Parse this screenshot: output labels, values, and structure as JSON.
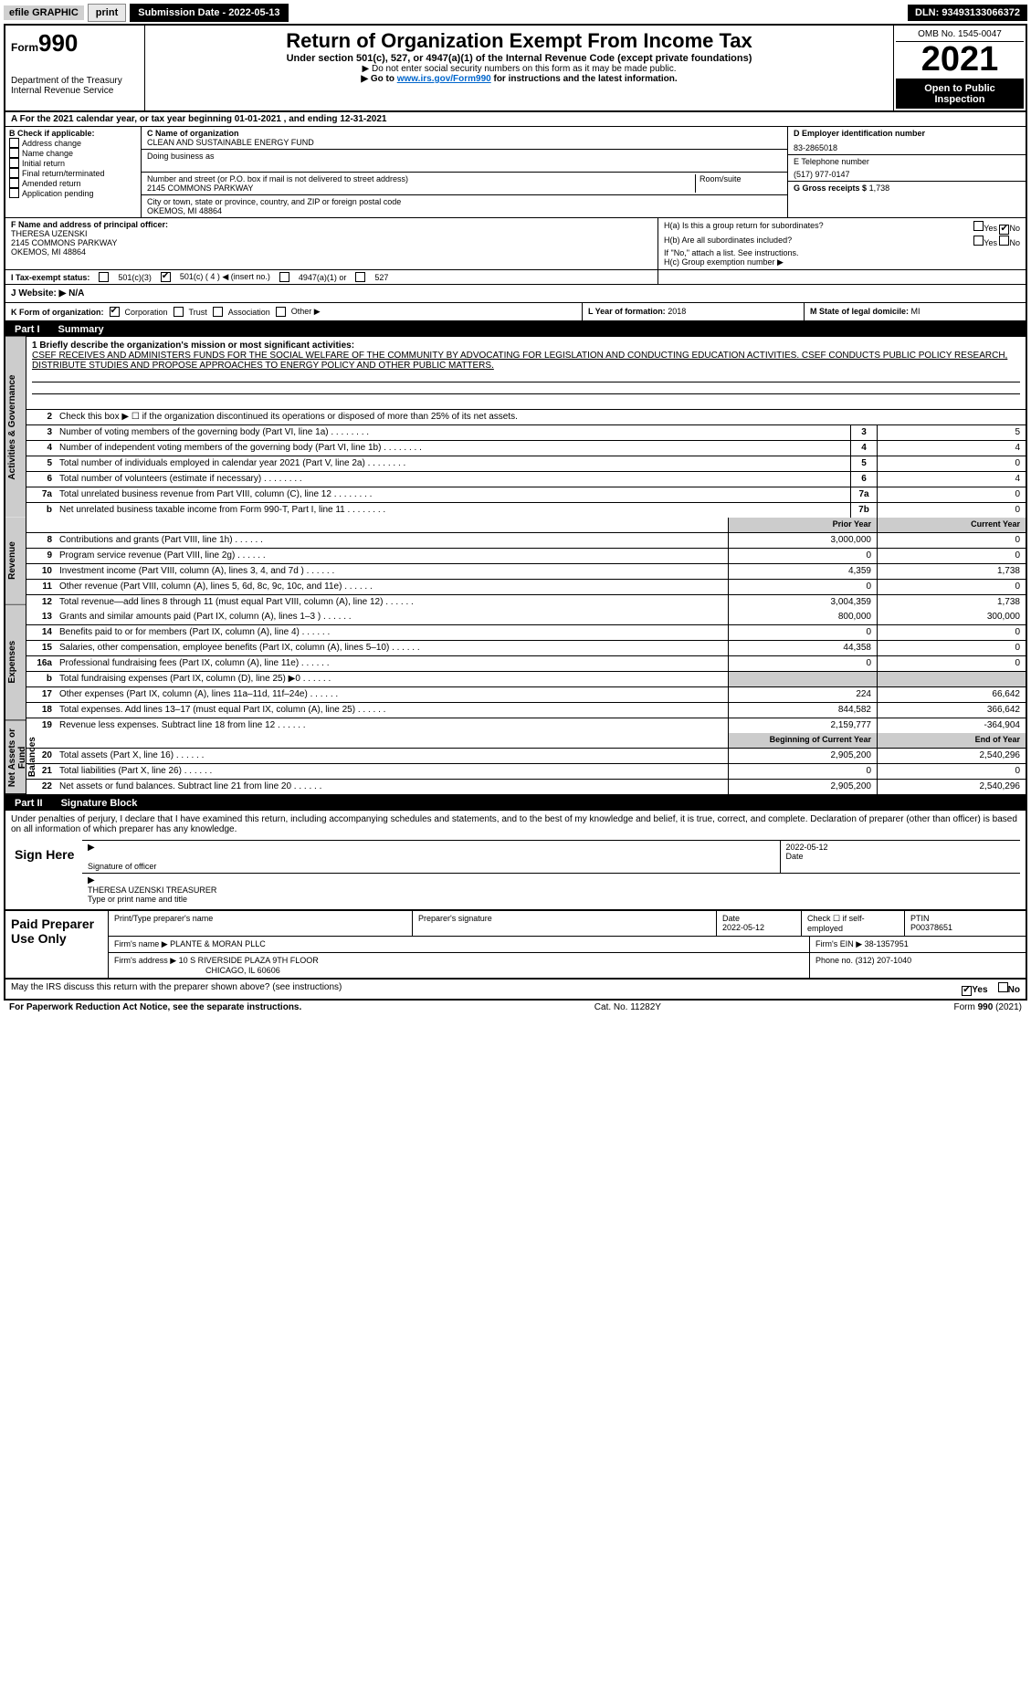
{
  "topbar": {
    "efile": "efile GRAPHIC",
    "print": "print",
    "subdate_label": "Submission Date - 2022-05-13",
    "dln_label": "DLN: 93493133066372"
  },
  "header": {
    "form_prefix": "Form",
    "form_number": "990",
    "dept": "Department of the Treasury",
    "irs": "Internal Revenue Service",
    "title": "Return of Organization Exempt From Income Tax",
    "sub": "Under section 501(c), 527, or 4947(a)(1) of the Internal Revenue Code (except private foundations)",
    "note1": "▶ Do not enter social security numbers on this form as it may be made public.",
    "note2_pre": "▶ Go to ",
    "note2_link": "www.irs.gov/Form990",
    "note2_post": " for instructions and the latest information.",
    "omb": "OMB No. 1545-0047",
    "year": "2021",
    "open": "Open to Public Inspection"
  },
  "period": "A For the 2021 calendar year, or tax year beginning 01-01-2021     , and ending 12-31-2021",
  "colB": {
    "header": "B Check if applicable:",
    "items": [
      "Address change",
      "Name change",
      "Initial return",
      "Final return/terminated",
      "Amended return",
      "Application pending"
    ]
  },
  "colC": {
    "name_label": "C Name of organization",
    "name": "CLEAN AND SUSTAINABLE ENERGY FUND",
    "dba_label": "Doing business as",
    "addr_label": "Number and street (or P.O. box if mail is not delivered to street address)",
    "room_label": "Room/suite",
    "addr": "2145 COMMONS PARKWAY",
    "city_label": "City or town, state or province, country, and ZIP or foreign postal code",
    "city": "OKEMOS, MI  48864"
  },
  "colD": {
    "ein_label": "D Employer identification number",
    "ein": "83-2865018",
    "phone_label": "E Telephone number",
    "phone": "(517) 977-0147",
    "gross_label": "G Gross receipts $",
    "gross": "1,738"
  },
  "rowF": {
    "label": "F Name and address of principal officer:",
    "name": "THERESA UZENSKI",
    "addr1": "2145 COMMONS PARKWAY",
    "addr2": "OKEMOS, MI  48864"
  },
  "rowH": {
    "ha": "H(a)  Is this a group return for subordinates?",
    "hb": "H(b)  Are all subordinates included?",
    "hb_note": "If \"No,\" attach a list. See instructions.",
    "hc": "H(c)  Group exemption number ▶",
    "yes": "Yes",
    "no": "No"
  },
  "rowI": {
    "label": "I   Tax-exempt status:",
    "opt1": "501(c)(3)",
    "opt2": "501(c) ( 4 ) ◀ (insert no.)",
    "opt3": "4947(a)(1) or",
    "opt4": "527"
  },
  "rowJ": {
    "label": "J   Website: ▶",
    "value": "N/A"
  },
  "rowK": {
    "label": "K Form of organization:",
    "opts": [
      "Corporation",
      "Trust",
      "Association",
      "Other ▶"
    ]
  },
  "rowL": {
    "label": "L Year of formation:",
    "value": "2018"
  },
  "rowM": {
    "label": "M State of legal domicile:",
    "value": "MI"
  },
  "part1": {
    "num": "Part I",
    "title": "Summary"
  },
  "vtabs": [
    "Activities & Governance",
    "Revenue",
    "Expenses",
    "Net Assets or Fund Balances"
  ],
  "mission": {
    "label": "1  Briefly describe the organization's mission or most significant activities:",
    "text": "CSEF RECEIVES AND ADMINISTERS FUNDS FOR THE SOCIAL WELFARE OF THE COMMUNITY BY ADVOCATING FOR LEGISLATION AND CONDUCTING EDUCATION ACTIVITIES. CSEF CONDUCTS PUBLIC POLICY RESEARCH, DISTRIBUTE STUDIES AND PROPOSE APPROACHES TO ENERGY POLICY AND OTHER PUBLIC MATTERS."
  },
  "lines_gov": [
    {
      "n": "2",
      "d": "Check this box ▶ ☐  if the organization discontinued its operations or disposed of more than 25% of its net assets."
    },
    {
      "n": "3",
      "d": "Number of voting members of the governing body (Part VI, line 1a)",
      "box": "3",
      "v": "5"
    },
    {
      "n": "4",
      "d": "Number of independent voting members of the governing body (Part VI, line 1b)",
      "box": "4",
      "v": "4"
    },
    {
      "n": "5",
      "d": "Total number of individuals employed in calendar year 2021 (Part V, line 2a)",
      "box": "5",
      "v": "0"
    },
    {
      "n": "6",
      "d": "Total number of volunteers (estimate if necessary)",
      "box": "6",
      "v": "4"
    },
    {
      "n": "7a",
      "d": "Total unrelated business revenue from Part VIII, column (C), line 12",
      "box": "7a",
      "v": "0"
    },
    {
      "n": "b",
      "d": "Net unrelated business taxable income from Form 990-T, Part I, line 11",
      "box": "7b",
      "v": "0"
    }
  ],
  "col_headers": {
    "prior": "Prior Year",
    "current": "Current Year"
  },
  "lines_rev": [
    {
      "n": "8",
      "d": "Contributions and grants (Part VIII, line 1h)",
      "p": "3,000,000",
      "c": "0"
    },
    {
      "n": "9",
      "d": "Program service revenue (Part VIII, line 2g)",
      "p": "0",
      "c": "0"
    },
    {
      "n": "10",
      "d": "Investment income (Part VIII, column (A), lines 3, 4, and 7d )",
      "p": "4,359",
      "c": "1,738"
    },
    {
      "n": "11",
      "d": "Other revenue (Part VIII, column (A), lines 5, 6d, 8c, 9c, 10c, and 11e)",
      "p": "0",
      "c": "0"
    },
    {
      "n": "12",
      "d": "Total revenue—add lines 8 through 11 (must equal Part VIII, column (A), line 12)",
      "p": "3,004,359",
      "c": "1,738"
    }
  ],
  "lines_exp": [
    {
      "n": "13",
      "d": "Grants and similar amounts paid (Part IX, column (A), lines 1–3 )",
      "p": "800,000",
      "c": "300,000"
    },
    {
      "n": "14",
      "d": "Benefits paid to or for members (Part IX, column (A), line 4)",
      "p": "0",
      "c": "0"
    },
    {
      "n": "15",
      "d": "Salaries, other compensation, employee benefits (Part IX, column (A), lines 5–10)",
      "p": "44,358",
      "c": "0"
    },
    {
      "n": "16a",
      "d": "Professional fundraising fees (Part IX, column (A), line 11e)",
      "p": "0",
      "c": "0"
    },
    {
      "n": "b",
      "d": "Total fundraising expenses (Part IX, column (D), line 25) ▶0",
      "p": "",
      "c": "",
      "shade": true
    },
    {
      "n": "17",
      "d": "Other expenses (Part IX, column (A), lines 11a–11d, 11f–24e)",
      "p": "224",
      "c": "66,642"
    },
    {
      "n": "18",
      "d": "Total expenses. Add lines 13–17 (must equal Part IX, column (A), line 25)",
      "p": "844,582",
      "c": "366,642"
    },
    {
      "n": "19",
      "d": "Revenue less expenses. Subtract line 18 from line 12",
      "p": "2,159,777",
      "c": "-364,904"
    }
  ],
  "col_headers2": {
    "prior": "Beginning of Current Year",
    "current": "End of Year"
  },
  "lines_na": [
    {
      "n": "20",
      "d": "Total assets (Part X, line 16)",
      "p": "2,905,200",
      "c": "2,540,296"
    },
    {
      "n": "21",
      "d": "Total liabilities (Part X, line 26)",
      "p": "0",
      "c": "0"
    },
    {
      "n": "22",
      "d": "Net assets or fund balances. Subtract line 21 from line 20",
      "p": "2,905,200",
      "c": "2,540,296"
    }
  ],
  "part2": {
    "num": "Part II",
    "title": "Signature Block"
  },
  "perjury": "Under penalties of perjury, I declare that I have examined this return, including accompanying schedules and statements, and to the best of my knowledge and belief, it is true, correct, and complete. Declaration of preparer (other than officer) is based on all information of which preparer has any knowledge.",
  "sign": {
    "here": "Sign Here",
    "sig_label": "Signature of officer",
    "date_label": "Date",
    "date": "2022-05-12",
    "name": "THERESA UZENSKI  TREASURER",
    "name_label": "Type or print name and title"
  },
  "paid": {
    "title": "Paid Preparer Use Only",
    "r1": {
      "c1": "Print/Type preparer's name",
      "c2": "Preparer's signature",
      "c3_label": "Date",
      "c3": "2022-05-12",
      "c4_label": "Check ☐ if self-employed",
      "c5_label": "PTIN",
      "c5": "P00378651"
    },
    "r2": {
      "label": "Firm's name    ▶",
      "value": "PLANTE & MORAN PLLC",
      "ein_label": "Firm's EIN ▶",
      "ein": "38-1357951"
    },
    "r3": {
      "label": "Firm's address ▶",
      "l1": "10 S RIVERSIDE PLAZA 9TH FLOOR",
      "l2": "CHICAGO, IL  60606",
      "ph_label": "Phone no.",
      "ph": "(312) 207-1040"
    }
  },
  "discuss": {
    "q": "May the IRS discuss this return with the preparer shown above? (see instructions)",
    "yes": "Yes",
    "no": "No"
  },
  "footer": {
    "left": "For Paperwork Reduction Act Notice, see the separate instructions.",
    "center": "Cat. No. 11282Y",
    "right_pre": "Form ",
    "right_bold": "990",
    "right_post": " (2021)"
  }
}
